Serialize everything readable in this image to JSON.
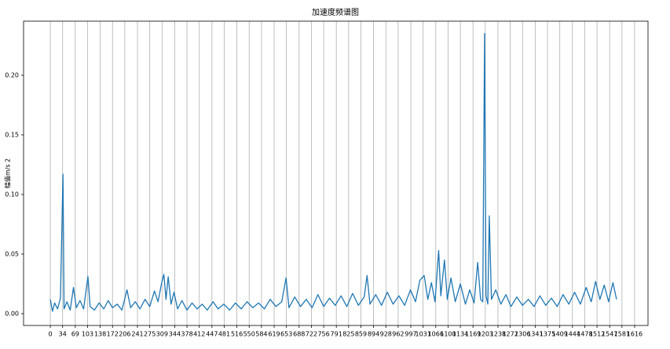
{
  "chart_data": {
    "type": "line",
    "title": "加速度频谱图",
    "y_label": "幅值m/s 2",
    "x": [
      0,
      6,
      12,
      20,
      28,
      35,
      38,
      46,
      55,
      64,
      72,
      82,
      92,
      104,
      110,
      122,
      135,
      148,
      160,
      172,
      185,
      198,
      212,
      222,
      235,
      248,
      262,
      275,
      288,
      298,
      308,
      314,
      320,
      326,
      334,
      342,
      352,
      364,
      378,
      392,
      406,
      420,
      434,
      450,
      464,
      480,
      496,
      512,
      528,
      544,
      560,
      576,
      592,
      608,
      624,
      640,
      652,
      660,
      676,
      692,
      708,
      724,
      740,
      756,
      772,
      788,
      804,
      820,
      836,
      852,
      868,
      876,
      884,
      900,
      916,
      932,
      948,
      964,
      980,
      996,
      1010,
      1022,
      1034,
      1044,
      1054,
      1064,
      1074,
      1080,
      1090,
      1098,
      1108,
      1120,
      1134,
      1148,
      1160,
      1172,
      1182,
      1190,
      1196,
      1201,
      1205,
      1210,
      1214,
      1220,
      1232,
      1246,
      1260,
      1274,
      1290,
      1306,
      1322,
      1338,
      1354,
      1370,
      1386,
      1402,
      1418,
      1434,
      1450,
      1466,
      1482,
      1496,
      1508,
      1520,
      1532,
      1544,
      1556,
      1566
    ],
    "values": [
      0.012,
      0.002,
      0.009,
      0.004,
      0.013,
      0.117,
      0.004,
      0.01,
      0.003,
      0.022,
      0.005,
      0.011,
      0.004,
      0.031,
      0.006,
      0.003,
      0.009,
      0.004,
      0.011,
      0.005,
      0.008,
      0.003,
      0.02,
      0.005,
      0.01,
      0.004,
      0.012,
      0.006,
      0.019,
      0.01,
      0.026,
      0.033,
      0.012,
      0.031,
      0.008,
      0.018,
      0.004,
      0.011,
      0.003,
      0.009,
      0.004,
      0.008,
      0.003,
      0.01,
      0.004,
      0.008,
      0.003,
      0.009,
      0.004,
      0.01,
      0.005,
      0.009,
      0.004,
      0.012,
      0.006,
      0.01,
      0.03,
      0.005,
      0.014,
      0.006,
      0.012,
      0.005,
      0.016,
      0.006,
      0.013,
      0.007,
      0.015,
      0.006,
      0.017,
      0.007,
      0.014,
      0.032,
      0.008,
      0.016,
      0.007,
      0.018,
      0.008,
      0.015,
      0.007,
      0.02,
      0.01,
      0.028,
      0.032,
      0.012,
      0.026,
      0.01,
      0.053,
      0.015,
      0.045,
      0.012,
      0.03,
      0.01,
      0.025,
      0.008,
      0.02,
      0.009,
      0.043,
      0.012,
      0.01,
      0.235,
      0.015,
      0.008,
      0.082,
      0.012,
      0.02,
      0.008,
      0.016,
      0.006,
      0.014,
      0.007,
      0.012,
      0.006,
      0.015,
      0.007,
      0.013,
      0.006,
      0.016,
      0.008,
      0.018,
      0.008,
      0.022,
      0.01,
      0.027,
      0.012,
      0.024,
      0.01,
      0.026,
      0.012
    ],
    "color": "#1f77b4",
    "xlim": [
      -74,
      1653
    ],
    "ylim": [
      -0.0099,
      0.2454
    ],
    "xticks": [
      0,
      34,
      69,
      103,
      138,
      172,
      206,
      241,
      275,
      309,
      344,
      378,
      412,
      447,
      481,
      516,
      550,
      584,
      619,
      653,
      688,
      722,
      756,
      791,
      825,
      859,
      894,
      928,
      962,
      997,
      1031,
      1066,
      1100,
      1134,
      1169,
      1203,
      1238,
      1272,
      1306,
      1341,
      1375,
      1409,
      1444,
      1478,
      1512,
      1547,
      1581,
      1616
    ],
    "yticks": [
      {
        "value": 0,
        "label": "0.00"
      },
      0.05,
      {
        "value": 0.1,
        "label": "0.10"
      },
      0.15,
      {
        "value": 0.2,
        "label": "0.20"
      }
    ],
    "grid": "x"
  }
}
